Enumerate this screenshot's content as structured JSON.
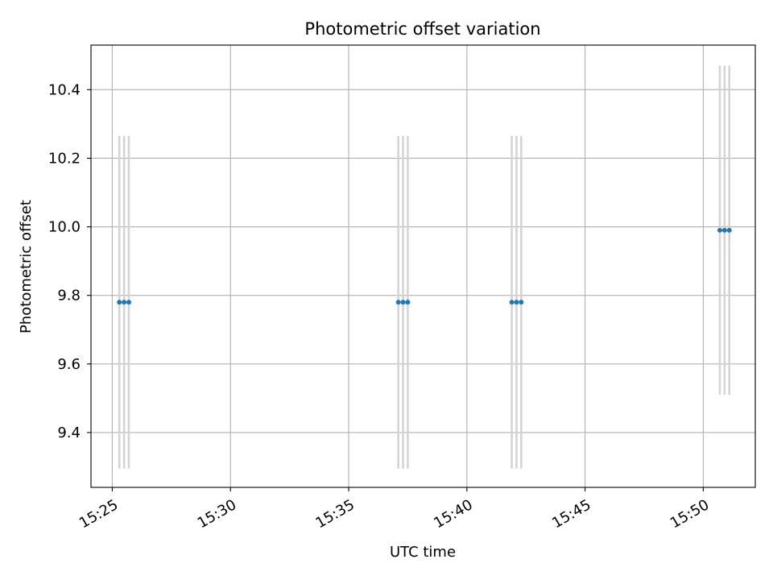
{
  "chart_data": {
    "type": "scatter",
    "title": "Photometric offset variation",
    "xlabel": "UTC time",
    "ylabel": "Photometric offset",
    "x_ticks": [
      "15:25",
      "15:30",
      "15:35",
      "15:40",
      "15:45",
      "15:50"
    ],
    "y_ticks": [
      "9.4",
      "9.6",
      "9.8",
      "10.0",
      "10.2",
      "10.4"
    ],
    "xlim": [
      "15:24.1",
      "15:52.2"
    ],
    "ylim": [
      9.24,
      10.53
    ],
    "grid": true,
    "series": [
      {
        "marker_color": "#1f77b4",
        "errorbar_color": "#d3d3d3",
        "points": [
          {
            "x": "15:25:18",
            "y": 9.78,
            "yerr": 0.485
          },
          {
            "x": "15:25:30",
            "y": 9.78,
            "yerr": 0.485
          },
          {
            "x": "15:25:42",
            "y": 9.78,
            "yerr": 0.485
          },
          {
            "x": "15:37:06",
            "y": 9.78,
            "yerr": 0.485
          },
          {
            "x": "15:37:18",
            "y": 9.78,
            "yerr": 0.485
          },
          {
            "x": "15:37:30",
            "y": 9.78,
            "yerr": 0.485
          },
          {
            "x": "15:41:54",
            "y": 9.78,
            "yerr": 0.485
          },
          {
            "x": "15:42:06",
            "y": 9.78,
            "yerr": 0.485
          },
          {
            "x": "15:42:18",
            "y": 9.78,
            "yerr": 0.485
          },
          {
            "x": "15:50:42",
            "y": 9.99,
            "yerr": 0.48
          },
          {
            "x": "15:50:54",
            "y": 9.99,
            "yerr": 0.48
          },
          {
            "x": "15:51:06",
            "y": 9.99,
            "yerr": 0.48
          }
        ]
      }
    ]
  }
}
